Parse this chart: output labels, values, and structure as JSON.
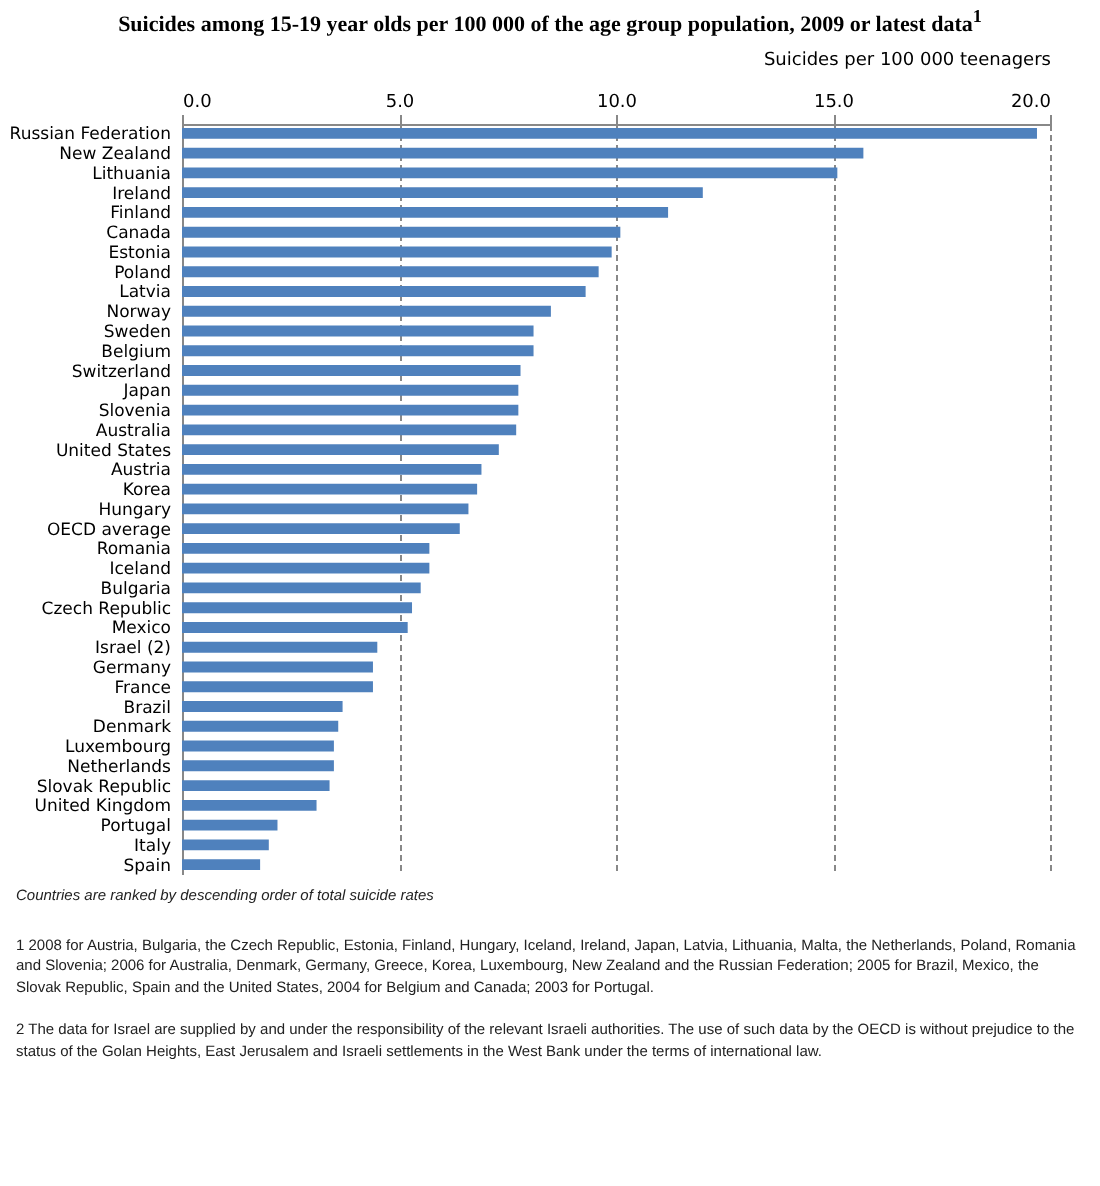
{
  "chart_data": {
    "type": "bar",
    "orientation": "horizontal",
    "title": "Suicides among 15-19 year olds per 100 000 of the age group population, 2009 or latest data$^{1}$",
    "xlabel": "Suicides per 100 000 teenagers",
    "categories": [
      "Russian Federation",
      "New Zealand",
      "Lithuania",
      "Ireland",
      "Finland",
      "Canada",
      "Estonia",
      "Poland",
      "Latvia",
      "Norway",
      "Sweden",
      "Belgium",
      "Switzerland",
      "Japan",
      "Slovenia",
      "Australia",
      "United States",
      "Austria",
      "Korea",
      "Hungary",
      "OECD average",
      "Romania",
      "Iceland",
      "Bulgaria",
      "Czech Republic",
      "Mexico",
      "Israel (2)",
      "Germany",
      "France",
      "Brazil",
      "Denmark",
      "Luxembourg",
      "Netherlands",
      "Slovak Republic",
      "United Kingdom",
      "Portugal",
      "Italy",
      "Spain"
    ],
    "values": [
      19.7,
      15.7,
      15.1,
      12.0,
      11.2,
      10.1,
      9.9,
      9.6,
      9.3,
      8.5,
      8.1,
      8.1,
      7.8,
      7.75,
      7.75,
      7.7,
      7.3,
      6.9,
      6.8,
      6.6,
      6.4,
      5.7,
      5.7,
      5.5,
      5.3,
      5.2,
      4.5,
      4.4,
      4.4,
      3.7,
      3.6,
      3.5,
      3.5,
      3.4,
      3.1,
      2.2,
      2.0,
      1.8
    ],
    "color": "#4f81bd",
    "xlim": [
      0,
      20
    ],
    "xticks": [
      {
        "value": 0,
        "label": "0.0"
      },
      {
        "value": 5,
        "label": "5.0"
      },
      {
        "value": 10,
        "label": "10.0"
      },
      {
        "value": 15,
        "label": "15.0"
      },
      {
        "value": 20,
        "label": "20.0"
      }
    ],
    "grid": "x",
    "annotations": [
      "Countries are ranked by descending order of total suicide rates",
      "1  2008 for Austria, Bulgaria, the Czech Republic, Estonia, Finland, Hungary, Iceland, Ireland, Japan, Latvia, Lithuania, Malta, the Netherlands, Poland, Romania and Slovenia; 2006 for Australia, Denmark, Germany, Greece, Korea, Luxembourg, New Zealand and the Russian Federation; 2005 for Brazil, Mexico, the Slovak Republic, Spain and the United States, 2004 for Belgium and Canada; 2003 for Portugal.",
      "2  The data for Israel are supplied by and under the responsibility of the relevant Israeli authorities. The use of such data by the OECD is without prejudice to the status of the Golan Heights, East Jerusalem and Israeli settlements in the West Bank under the terms of international law."
    ]
  }
}
